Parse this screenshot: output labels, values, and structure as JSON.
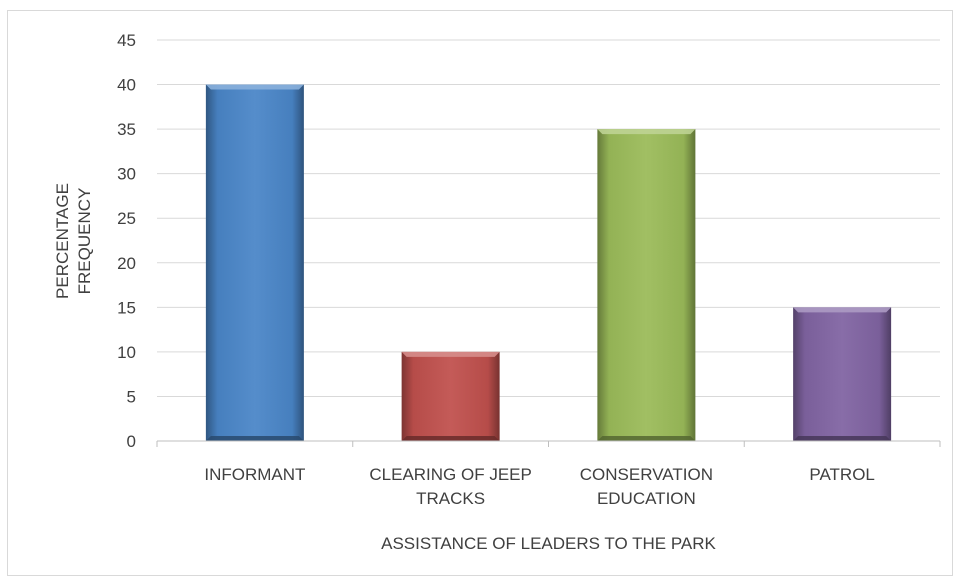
{
  "chart_data": {
    "type": "bar",
    "title": "",
    "xlabel": "ASSISTANCE OF LEADERS TO THE PARK",
    "ylabel": [
      "PERCENTAGE",
      "FREQUENCY"
    ],
    "categories": [
      [
        "INFORMANT"
      ],
      [
        "CLEARING OF JEEP",
        "TRACKS"
      ],
      [
        "CONSERVATION",
        "EDUCATION"
      ],
      [
        "PATROL"
      ]
    ],
    "values": [
      40,
      10,
      35,
      15
    ],
    "colors": [
      "#4A86C8",
      "#C0504D",
      "#9BBB59",
      "#8064A2"
    ],
    "ylim": [
      0,
      45
    ],
    "yticks": [
      0,
      5,
      10,
      15,
      20,
      25,
      30,
      35,
      40,
      45
    ],
    "grid": true,
    "legend": "none"
  }
}
